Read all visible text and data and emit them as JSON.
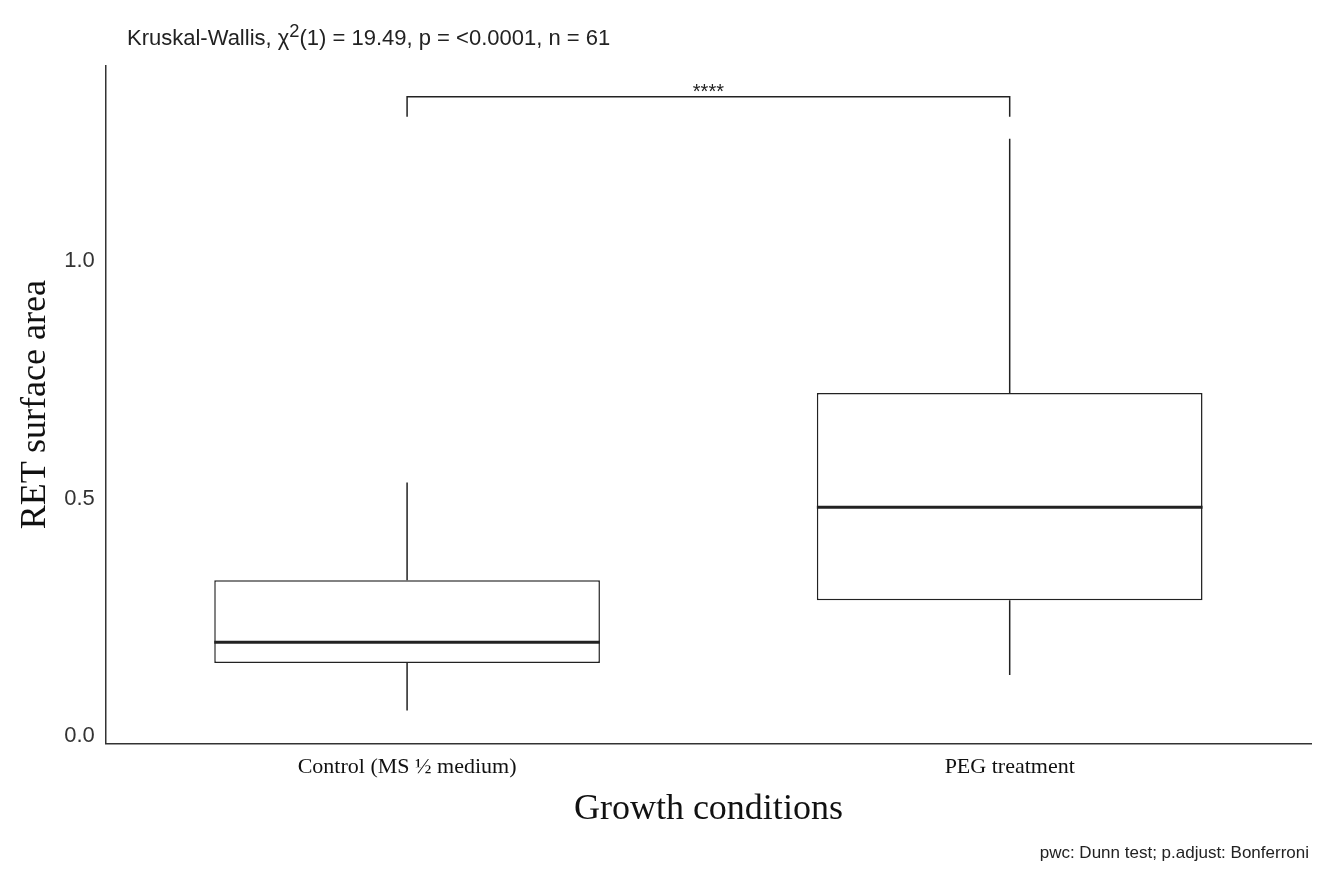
{
  "chart_data": {
    "type": "box",
    "title": "Kruskal-Wallis, χ$^{2}$(1) = 19.49, p = <0.0001, n = 61",
    "xlabel": "Growth conditions",
    "ylabel": "RET surface area",
    "categories": [
      "Control (MS ½ medium)",
      "PEG treatment"
    ],
    "boxes": [
      {
        "low": 0.054,
        "q1": 0.154,
        "median": 0.198,
        "q3": 0.328,
        "high": 0.534
      },
      {
        "low": 0.129,
        "q1": 0.286,
        "median": 0.482,
        "q3": 0.722,
        "high": 1.257
      }
    ],
    "ylim": [
      -0.015,
      1.41
    ],
    "yticks": [
      {
        "value": 0,
        "label": "0.0"
      },
      {
        "value": 0.5,
        "label": "0.5"
      },
      {
        "value": 1,
        "label": "1.0"
      }
    ],
    "grid": false,
    "legend": false,
    "annotations": [
      "****",
      "pwc: Dunn test; p.adjust: Bonferroni"
    ]
  }
}
